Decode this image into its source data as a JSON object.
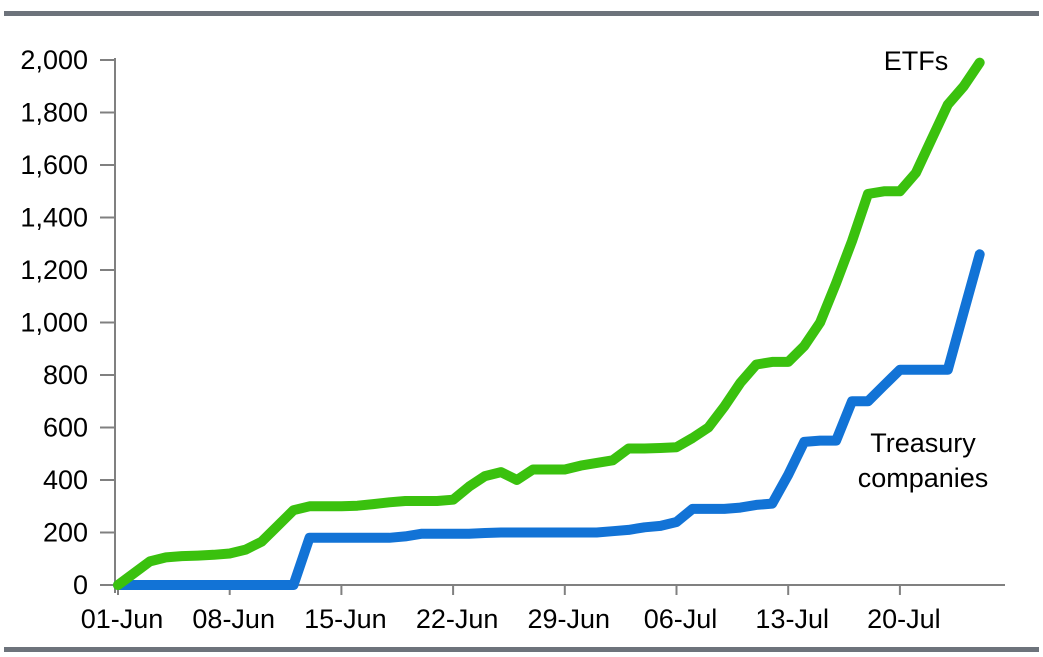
{
  "page": {
    "background": "#ffffff",
    "rule_color": "#6d737b",
    "axis_color": "#808080"
  },
  "chart_data": {
    "type": "line",
    "title": "",
    "xlabel": "",
    "ylabel": "",
    "grid": false,
    "legend_position": "inline-annotations",
    "ylim": [
      0,
      2000
    ],
    "y_ticks": [
      0,
      200,
      400,
      600,
      800,
      1000,
      1200,
      1400,
      1600,
      1800,
      2000
    ],
    "y_tick_labels": [
      "0",
      "200",
      "400",
      "600",
      "800",
      "1,000",
      "1,200",
      "1,400",
      "1,600",
      "1,800",
      "2,000"
    ],
    "x_tick_labels": [
      "01-Jun",
      "08-Jun",
      "15-Jun",
      "22-Jun",
      "29-Jun",
      "06-Jul",
      "13-Jul",
      "20-Jul"
    ],
    "x": [
      "01-Jun",
      "02-Jun",
      "03-Jun",
      "04-Jun",
      "05-Jun",
      "06-Jun",
      "07-Jun",
      "08-Jun",
      "09-Jun",
      "10-Jun",
      "11-Jun",
      "12-Jun",
      "13-Jun",
      "14-Jun",
      "15-Jun",
      "16-Jun",
      "17-Jun",
      "18-Jun",
      "19-Jun",
      "20-Jun",
      "21-Jun",
      "22-Jun",
      "23-Jun",
      "24-Jun",
      "25-Jun",
      "26-Jun",
      "27-Jun",
      "28-Jun",
      "29-Jun",
      "30-Jun",
      "01-Jul",
      "02-Jul",
      "03-Jul",
      "04-Jul",
      "05-Jul",
      "06-Jul",
      "07-Jul",
      "08-Jul",
      "09-Jul",
      "10-Jul",
      "11-Jul",
      "12-Jul",
      "13-Jul",
      "14-Jul",
      "15-Jul",
      "16-Jul",
      "17-Jul",
      "18-Jul",
      "19-Jul",
      "20-Jul",
      "21-Jul",
      "22-Jul",
      "23-Jul",
      "24-Jul",
      "25-Jul"
    ],
    "series": [
      {
        "name": "ETFs",
        "color": "#3ac10e",
        "values": [
          0,
          45,
          90,
          105,
          110,
          112,
          115,
          120,
          135,
          165,
          225,
          285,
          300,
          300,
          300,
          302,
          308,
          315,
          320,
          320,
          320,
          325,
          375,
          415,
          430,
          400,
          440,
          440,
          440,
          455,
          465,
          475,
          520,
          520,
          522,
          525,
          560,
          600,
          680,
          770,
          840,
          850,
          850,
          910,
          1000,
          1150,
          1310,
          1490,
          1500,
          1500,
          1570,
          1700,
          1830,
          1900,
          1990
        ]
      },
      {
        "name": "Treasury companies",
        "color": "#1273d6",
        "values": [
          0,
          0,
          0,
          0,
          0,
          0,
          0,
          0,
          0,
          0,
          0,
          0,
          180,
          180,
          180,
          180,
          180,
          180,
          185,
          195,
          195,
          195,
          195,
          198,
          200,
          200,
          200,
          200,
          200,
          200,
          200,
          205,
          210,
          220,
          225,
          240,
          290,
          290,
          290,
          295,
          305,
          310,
          420,
          545,
          550,
          550,
          700,
          700,
          760,
          820,
          820,
          820,
          820,
          1040,
          1260
        ]
      }
    ],
    "annotations": [
      {
        "text": "ETFs",
        "lines": [
          "ETFs"
        ]
      },
      {
        "text": "Treasury companies",
        "lines": [
          "Treasury",
          "companies"
        ]
      }
    ]
  }
}
